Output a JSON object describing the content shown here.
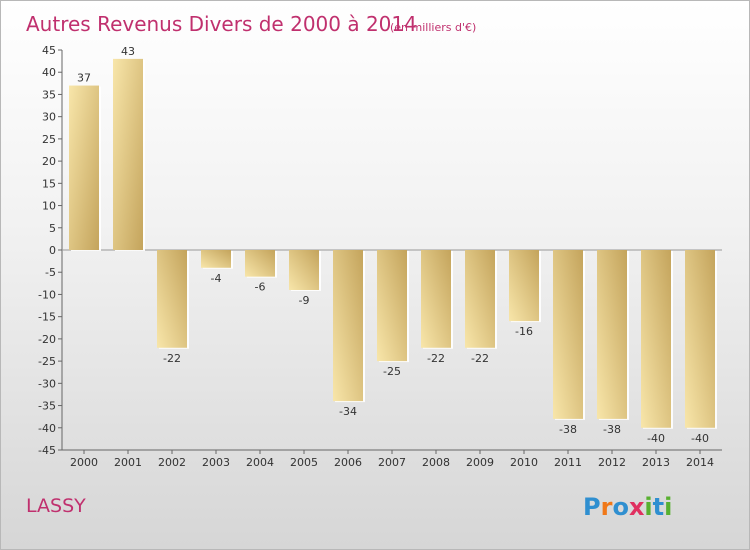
{
  "title": "Autres Revenus Divers de 2000 à 2014",
  "subtitle": "(en milliers d'€)",
  "commune": "LASSY",
  "logo": {
    "letters": [
      "P",
      "r",
      "o",
      "x",
      "i",
      "t",
      "i"
    ],
    "colors": [
      "#2f8fd0",
      "#f07818",
      "#2f8fd0",
      "#e03060",
      "#58b030",
      "#2f8fd0",
      "#58b030"
    ]
  },
  "colors": {
    "bar_light": "#f6e0a0",
    "bar_dark": "#c8a860",
    "title": "#c0306e"
  },
  "chart_data": {
    "type": "bar",
    "categories": [
      "2000",
      "2001",
      "2002",
      "2003",
      "2004",
      "2005",
      "2006",
      "2007",
      "2008",
      "2009",
      "2010",
      "2011",
      "2012",
      "2013",
      "2014"
    ],
    "values": [
      37,
      43,
      -22,
      -4,
      -6,
      -9,
      -34,
      -25,
      -22,
      -22,
      -16,
      -38,
      -38,
      -40,
      -40
    ],
    "ylim": [
      -45,
      45
    ],
    "yticks": [
      45,
      40,
      35,
      30,
      25,
      20,
      15,
      10,
      5,
      0,
      -5,
      -10,
      -15,
      -20,
      -25,
      -30,
      -35,
      -40,
      -45
    ],
    "grid": false,
    "xlabel": "",
    "ylabel": ""
  }
}
